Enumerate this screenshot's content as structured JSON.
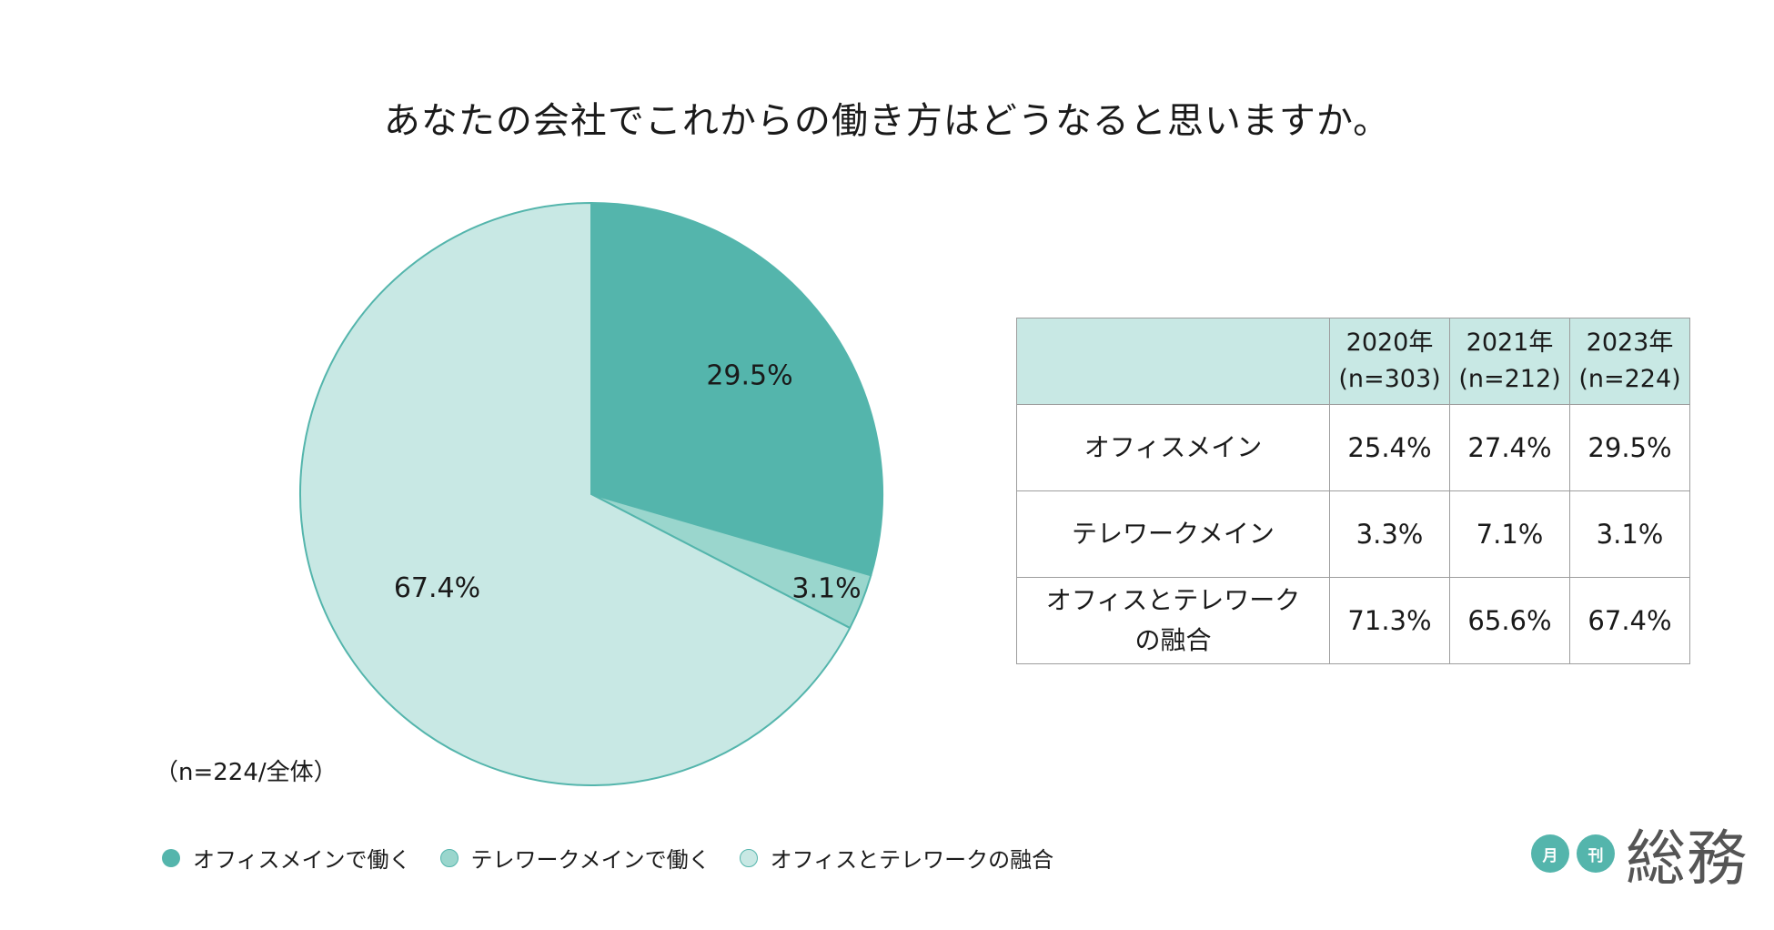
{
  "chart_data": {
    "type": "pie",
    "title": "あなたの会社でこれからの働き方はどうなると思いますか。",
    "sample_note": "（n=224/全体）",
    "slices": [
      {
        "name": "オフィスメインで働く",
        "value": 29.5,
        "label": "29.5%",
        "color": "#54b5ac"
      },
      {
        "name": "テレワークメインで働く",
        "value": 3.1,
        "label": "3.1%",
        "color": "#9ad6cd"
      },
      {
        "name": "オフィスとテレワークの融合",
        "value": 67.4,
        "label": "67.4%",
        "color": "#c8e8e4"
      }
    ],
    "edge_color": "#54b5ac"
  },
  "table": {
    "columns": [
      {
        "year": "2020年",
        "n": "(n=303)"
      },
      {
        "year": "2021年",
        "n": "(n=212)"
      },
      {
        "year": "2023年",
        "n": "(n=224)"
      }
    ],
    "rows": [
      {
        "label": "オフィスメイン",
        "values": [
          "25.4%",
          "27.4%",
          "29.5%"
        ]
      },
      {
        "label": "テレワークメイン",
        "values": [
          "3.3%",
          "7.1%",
          "3.1%"
        ]
      },
      {
        "label_line1": "オフィスとテレワーク",
        "label_line2": "の融合",
        "values": [
          "71.3%",
          "65.6%",
          "67.4%"
        ]
      }
    ]
  },
  "logo": {
    "badge1": "月",
    "badge2": "刊",
    "text": "総務"
  }
}
